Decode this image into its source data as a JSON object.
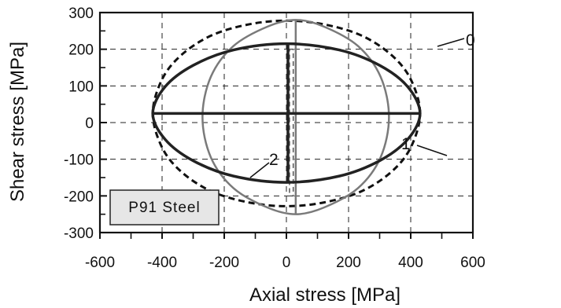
{
  "chart_data": {
    "type": "line",
    "title": "",
    "xlabel": "Axial stress [MPa]",
    "ylabel": "Shear stress [MPa]",
    "xlim": [
      -600,
      600
    ],
    "ylim": [
      -300,
      300
    ],
    "xticks": [
      "-600",
      "-400",
      "-200",
      "0",
      "200",
      "400",
      "600"
    ],
    "yticks": [
      "300",
      "200",
      "100",
      "0",
      "-100",
      "-200",
      "-300"
    ],
    "grid": true,
    "annotation_box": "P91 Steel",
    "series": [
      {
        "name": "0",
        "style": "dashed-black",
        "x": [
          430,
          400,
          337,
          240,
          120,
          0,
          -120,
          -240,
          -337,
          -400,
          -430,
          -400,
          -337,
          -240,
          -120,
          0,
          120,
          240,
          337,
          400,
          430
        ],
        "y": [
          25,
          118,
          185,
          238,
          268,
          278,
          268,
          238,
          185,
          118,
          25,
          -68,
          -135,
          -188,
          -218,
          -228,
          -218,
          -188,
          -135,
          -68,
          25
        ]
      },
      {
        "name": "1",
        "style": "solid-gray",
        "x": [
          330,
          303,
          230,
          120,
          30,
          -60,
          -170,
          -243,
          -270,
          -243,
          -170,
          -60,
          30,
          120,
          230,
          303,
          330
        ],
        "y": [
          15,
          125,
          209,
          262,
          280,
          262,
          209,
          125,
          15,
          -95,
          -179,
          -232,
          -250,
          -232,
          -179,
          -95,
          15
        ],
        "segments_x": [
          [
            30,
            30
          ]
        ],
        "segments_y": [
          [
            -250,
            280
          ]
        ]
      },
      {
        "name": "2",
        "style": "solid-black",
        "x": [
          430,
          390,
          300,
          170,
          0,
          -170,
          -300,
          -390,
          -430,
          -390,
          -300,
          -170,
          0,
          170,
          300,
          390,
          430
        ],
        "y": [
          25,
          98,
          156,
          198,
          215,
          198,
          156,
          98,
          25,
          -46,
          -104,
          -146,
          -163,
          -146,
          -104,
          -46,
          25
        ],
        "segments_x": [
          [
            -430,
            430
          ],
          [
            5,
            5
          ]
        ],
        "segments_y": [
          [
            25,
            25
          ],
          [
            -163,
            215
          ]
        ]
      }
    ],
    "inner_box": {
      "x": [
        10,
        22
      ],
      "y": [
        -200,
        200
      ]
    }
  }
}
